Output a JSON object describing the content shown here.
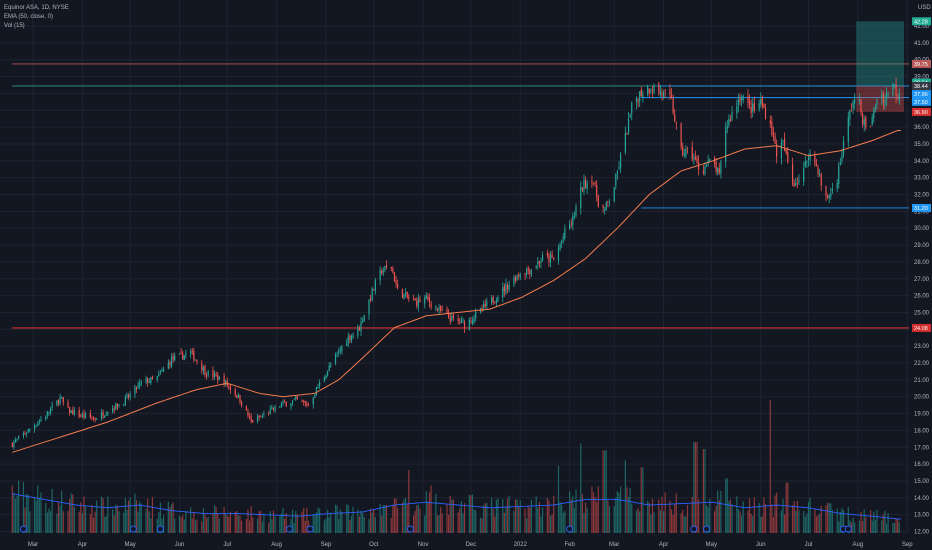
{
  "legend": {
    "line1": "Equinor ASA, 1D, NYSE",
    "line2": "EMA (50, close, 0)",
    "line3": "Vol (15)"
  },
  "chart_data": {
    "type": "candlestick",
    "currency_label": "USD",
    "y_range": [
      12.0,
      43.0
    ],
    "price_ticks": [
      "42.00",
      "41.00",
      "40.00",
      "39.00",
      "38.00",
      "37.00",
      "36.00",
      "35.00",
      "34.00",
      "33.00",
      "32.00",
      "31.00",
      "30.00",
      "29.00",
      "28.00",
      "27.00",
      "26.00",
      "25.00",
      "24.00",
      "23.00",
      "22.00",
      "21.00",
      "20.00",
      "19.00",
      "18.00",
      "17.00",
      "16.00",
      "15.00",
      "14.00",
      "13.00",
      "12.00"
    ],
    "x_labels": [
      {
        "label": "Mar",
        "day": 13
      },
      {
        "label": "Apr",
        "day": 44
      },
      {
        "label": "May",
        "day": 74
      },
      {
        "label": "Jun",
        "day": 105
      },
      {
        "label": "Jul",
        "day": 135
      },
      {
        "label": "Aug",
        "day": 166
      },
      {
        "label": "Sep",
        "day": 197
      },
      {
        "label": "Oct",
        "day": 227
      },
      {
        "label": "Nov",
        "day": 258
      },
      {
        "label": "Dec",
        "day": 288
      },
      {
        "label": "2022",
        "day": 319
      },
      {
        "label": "Feb",
        "day": 350
      },
      {
        "label": "Mar",
        "day": 378
      },
      {
        "label": "Apr",
        "day": 409
      },
      {
        "label": "May",
        "day": 439
      },
      {
        "label": "Jun",
        "day": 470
      },
      {
        "label": "Jul",
        "day": 500
      },
      {
        "label": "Aug",
        "day": 531
      },
      {
        "label": "Sep",
        "day": 562
      }
    ],
    "price_keypoints": [
      [
        0,
        17.2
      ],
      [
        20,
        18.8
      ],
      [
        30,
        19.9
      ],
      [
        35,
        19.2
      ],
      [
        42,
        18.9
      ],
      [
        52,
        18.7
      ],
      [
        62,
        19.3
      ],
      [
        70,
        19.7
      ],
      [
        82,
        20.9
      ],
      [
        90,
        21.0
      ],
      [
        100,
        22.2
      ],
      [
        112,
        22.6
      ],
      [
        122,
        21.4
      ],
      [
        132,
        21.0
      ],
      [
        142,
        20.0
      ],
      [
        150,
        18.5
      ],
      [
        158,
        18.9
      ],
      [
        168,
        19.5
      ],
      [
        178,
        19.8
      ],
      [
        186,
        19.5
      ],
      [
        192,
        20.6
      ],
      [
        202,
        22.2
      ],
      [
        210,
        23.4
      ],
      [
        218,
        24.1
      ],
      [
        225,
        26.0
      ],
      [
        232,
        27.5
      ],
      [
        238,
        27.7
      ],
      [
        242,
        26.3
      ],
      [
        252,
        25.6
      ],
      [
        260,
        25.8
      ],
      [
        268,
        25.1
      ],
      [
        276,
        24.6
      ],
      [
        284,
        24.3
      ],
      [
        292,
        24.9
      ],
      [
        300,
        25.6
      ],
      [
        310,
        26.5
      ],
      [
        318,
        27.3
      ],
      [
        326,
        27.6
      ],
      [
        334,
        28.3
      ],
      [
        340,
        28.1
      ],
      [
        346,
        29.5
      ],
      [
        352,
        30.5
      ],
      [
        358,
        32.5
      ],
      [
        364,
        33.0
      ],
      [
        368,
        31.6
      ],
      [
        372,
        31.0
      ],
      [
        378,
        32.5
      ],
      [
        384,
        35.0
      ],
      [
        390,
        37.5
      ],
      [
        396,
        38.2
      ],
      [
        402,
        38.4
      ],
      [
        408,
        38.0
      ],
      [
        414,
        37.5
      ],
      [
        420,
        34.5
      ],
      [
        426,
        34.5
      ],
      [
        432,
        33.4
      ],
      [
        437,
        33.8
      ],
      [
        440,
        34.0
      ],
      [
        444,
        33.0
      ],
      [
        448,
        36.0
      ],
      [
        454,
        37.2
      ],
      [
        458,
        38.0
      ],
      [
        462,
        37.2
      ],
      [
        466,
        37.0
      ],
      [
        470,
        37.5
      ],
      [
        476,
        36.2
      ],
      [
        480,
        34.5
      ],
      [
        484,
        35.0
      ],
      [
        490,
        32.7
      ],
      [
        496,
        33.0
      ],
      [
        500,
        34.5
      ],
      [
        506,
        33.5
      ],
      [
        510,
        31.6
      ],
      [
        514,
        32.1
      ],
      [
        518,
        33.0
      ],
      [
        524,
        36.0
      ],
      [
        528,
        37.6
      ],
      [
        532,
        37.3
      ],
      [
        536,
        35.8
      ],
      [
        540,
        36.4
      ],
      [
        544,
        38.2
      ],
      [
        548,
        37.6
      ],
      [
        552,
        38.8
      ],
      [
        556,
        37.9
      ],
      [
        558,
        38.7
      ]
    ],
    "ema_keypoints": [
      [
        0,
        16.7
      ],
      [
        30,
        17.6
      ],
      [
        60,
        18.5
      ],
      [
        90,
        19.6
      ],
      [
        115,
        20.4
      ],
      [
        135,
        20.8
      ],
      [
        155,
        20.2
      ],
      [
        170,
        20.0
      ],
      [
        190,
        20.2
      ],
      [
        205,
        21.0
      ],
      [
        220,
        22.3
      ],
      [
        240,
        24.1
      ],
      [
        260,
        24.8
      ],
      [
        280,
        25.0
      ],
      [
        300,
        25.2
      ],
      [
        320,
        25.9
      ],
      [
        340,
        26.9
      ],
      [
        360,
        28.2
      ],
      [
        380,
        30.0
      ],
      [
        400,
        32.0
      ],
      [
        420,
        33.4
      ],
      [
        440,
        34.0
      ],
      [
        460,
        34.7
      ],
      [
        480,
        34.9
      ],
      [
        500,
        34.3
      ],
      [
        520,
        34.6
      ],
      [
        540,
        35.2
      ],
      [
        556,
        35.8
      ]
    ],
    "volume_profile": [
      [
        0,
        0.28
      ],
      [
        20,
        0.24
      ],
      [
        40,
        0.2
      ],
      [
        60,
        0.18
      ],
      [
        80,
        0.2
      ],
      [
        100,
        0.16
      ],
      [
        120,
        0.14
      ],
      [
        140,
        0.14
      ],
      [
        160,
        0.13
      ],
      [
        180,
        0.12
      ],
      [
        200,
        0.14
      ],
      [
        220,
        0.15
      ],
      [
        240,
        0.2
      ],
      [
        260,
        0.22
      ],
      [
        280,
        0.2
      ],
      [
        300,
        0.18
      ],
      [
        320,
        0.19
      ],
      [
        340,
        0.2
      ],
      [
        360,
        0.24
      ],
      [
        380,
        0.24
      ],
      [
        400,
        0.2
      ],
      [
        420,
        0.21
      ],
      [
        440,
        0.22
      ],
      [
        460,
        0.18
      ],
      [
        480,
        0.2
      ],
      [
        500,
        0.18
      ],
      [
        520,
        0.14
      ],
      [
        540,
        0.12
      ],
      [
        556,
        0.1
      ]
    ],
    "volume_spikes": [
      [
        234,
        0.2
      ],
      [
        250,
        0.45
      ],
      [
        264,
        0.34
      ],
      [
        342,
        0.48
      ],
      [
        356,
        0.64
      ],
      [
        372,
        0.59
      ],
      [
        384,
        0.52
      ],
      [
        396,
        0.47
      ],
      [
        429,
        0.65
      ],
      [
        434,
        0.6
      ],
      [
        448,
        0.39
      ],
      [
        475,
        0.95
      ],
      [
        487,
        0.36
      ]
    ],
    "horizontal_levels": [
      {
        "price": 39.75,
        "color": "#b85a5a",
        "label": "39.75",
        "from": 0
      },
      {
        "price": 38.44,
        "color": "#2a9a8a",
        "label": "38.44",
        "from": 0
      },
      {
        "price": 24.08,
        "color": "#d32f2f",
        "label": "24.08",
        "from": 0
      },
      {
        "price": 38.44,
        "color": "#2196f3",
        "label": "",
        "from": 405
      },
      {
        "price": 37.75,
        "color": "#2196f3",
        "label": "37.75",
        "from": 395
      },
      {
        "price": 31.2,
        "color": "#2196f3",
        "label": "31.20",
        "from": 395
      }
    ],
    "axis_badges": [
      {
        "price": 42.28,
        "text": "42.28",
        "color": "#22ab94"
      },
      {
        "price": 39.75,
        "text": "39.75",
        "color": "#b85a5a"
      },
      {
        "price": 38.64,
        "text": "38.64",
        "color": "#22ab94"
      },
      {
        "price": 38.44,
        "text": "38.44",
        "color": "#363a45"
      },
      {
        "price": 37.96,
        "text": "37.96",
        "color": "#2196f3"
      },
      {
        "price": 37.5,
        "text": "37.50",
        "color": "#2196f3"
      },
      {
        "price": 36.9,
        "text": "36.90",
        "color": "#d32f2f"
      },
      {
        "price": 31.2,
        "text": "31.20",
        "color": "#2196f3"
      },
      {
        "price": 24.08,
        "text": "24.08",
        "color": "#d32f2f"
      }
    ],
    "position_box": {
      "entry": 38.44,
      "target": 42.28,
      "stop": 36.9,
      "start_day": 530,
      "end_day": 560
    },
    "dividend_days": [
      7,
      76,
      93,
      174,
      187,
      250,
      350,
      428,
      436,
      522,
      525
    ]
  },
  "colors": {
    "background": "#131722",
    "grid": "#1f2330",
    "up": "#26a69a",
    "down": "#ef5350",
    "ema": "#f57c4d",
    "volume_ma": "#2962ff",
    "text": "#b2b5be"
  }
}
